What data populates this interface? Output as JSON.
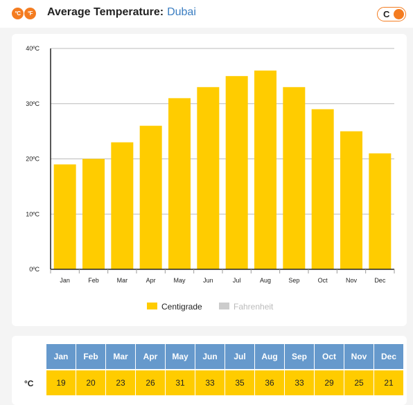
{
  "header": {
    "logo_c": "°C",
    "logo_f": "°F",
    "title": "Average Temperature:",
    "city": "Dubai",
    "toggle_label": "C"
  },
  "colors": {
    "bar": "#ffcc00",
    "accent": "#f47c20",
    "month_header": "#6699cc",
    "legend_inactive": "#cccccc"
  },
  "chart_data": {
    "type": "bar",
    "categories": [
      "Jan",
      "Feb",
      "Mar",
      "Apr",
      "May",
      "Jun",
      "Jul",
      "Aug",
      "Sep",
      "Oct",
      "Nov",
      "Dec"
    ],
    "series": [
      {
        "name": "Centigrade",
        "values": [
          19,
          20,
          23,
          26,
          31,
          33,
          35,
          36,
          33,
          29,
          25,
          21
        ]
      }
    ],
    "ylim": [
      0,
      40
    ],
    "yticks": [
      "0ºC",
      "10ºC",
      "20ºC",
      "30ºC",
      "40ºC"
    ],
    "grid": true,
    "legend": [
      "Centigrade",
      "Fahrenheit"
    ],
    "legend_position": "bottom"
  },
  "table": {
    "unit_label": "°C",
    "months": [
      "Jan",
      "Feb",
      "Mar",
      "Apr",
      "May",
      "Jun",
      "Jul",
      "Aug",
      "Sep",
      "Oct",
      "Nov",
      "Dec"
    ],
    "values": [
      "19",
      "20",
      "23",
      "26",
      "31",
      "33",
      "35",
      "36",
      "33",
      "29",
      "25",
      "21"
    ]
  }
}
